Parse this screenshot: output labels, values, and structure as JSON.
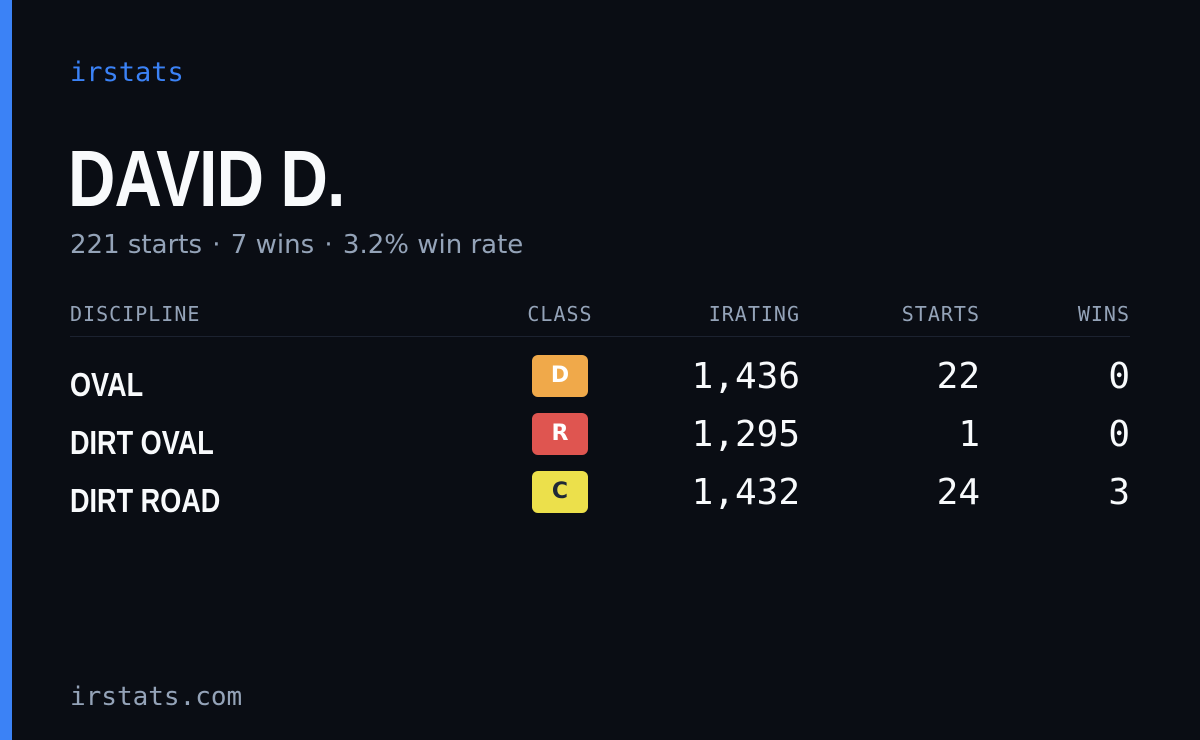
{
  "brand": "irstats",
  "player": {
    "name": "DAVID D.",
    "starts_text": "221 starts",
    "wins_text": "7 wins",
    "winrate_text": "3.2% win rate",
    "separator": "·"
  },
  "table": {
    "headers": {
      "discipline": "DISCIPLINE",
      "class": "CLASS",
      "irating": "IRATING",
      "starts": "STARTS",
      "wins": "WINS"
    },
    "rows": [
      {
        "discipline": "OVAL",
        "class": "D",
        "class_color": "#f0a94a",
        "class_text_color": "#ffffff",
        "irating": "1,436",
        "starts": "22",
        "wins": "0"
      },
      {
        "discipline": "DIRT OVAL",
        "class": "R",
        "class_color": "#df5550",
        "class_text_color": "#ffffff",
        "irating": "1,295",
        "starts": "1",
        "wins": "0"
      },
      {
        "discipline": "DIRT ROAD",
        "class": "C",
        "class_color": "#ece04b",
        "class_text_color": "#1f2937",
        "irating": "1,432",
        "starts": "24",
        "wins": "3"
      }
    ]
  },
  "footer": {
    "domain": "irstats.com"
  },
  "colors": {
    "accent": "#3b82f6",
    "background": "#0a0d14",
    "text_primary": "#f8fafc",
    "text_muted": "#94a3b8"
  }
}
